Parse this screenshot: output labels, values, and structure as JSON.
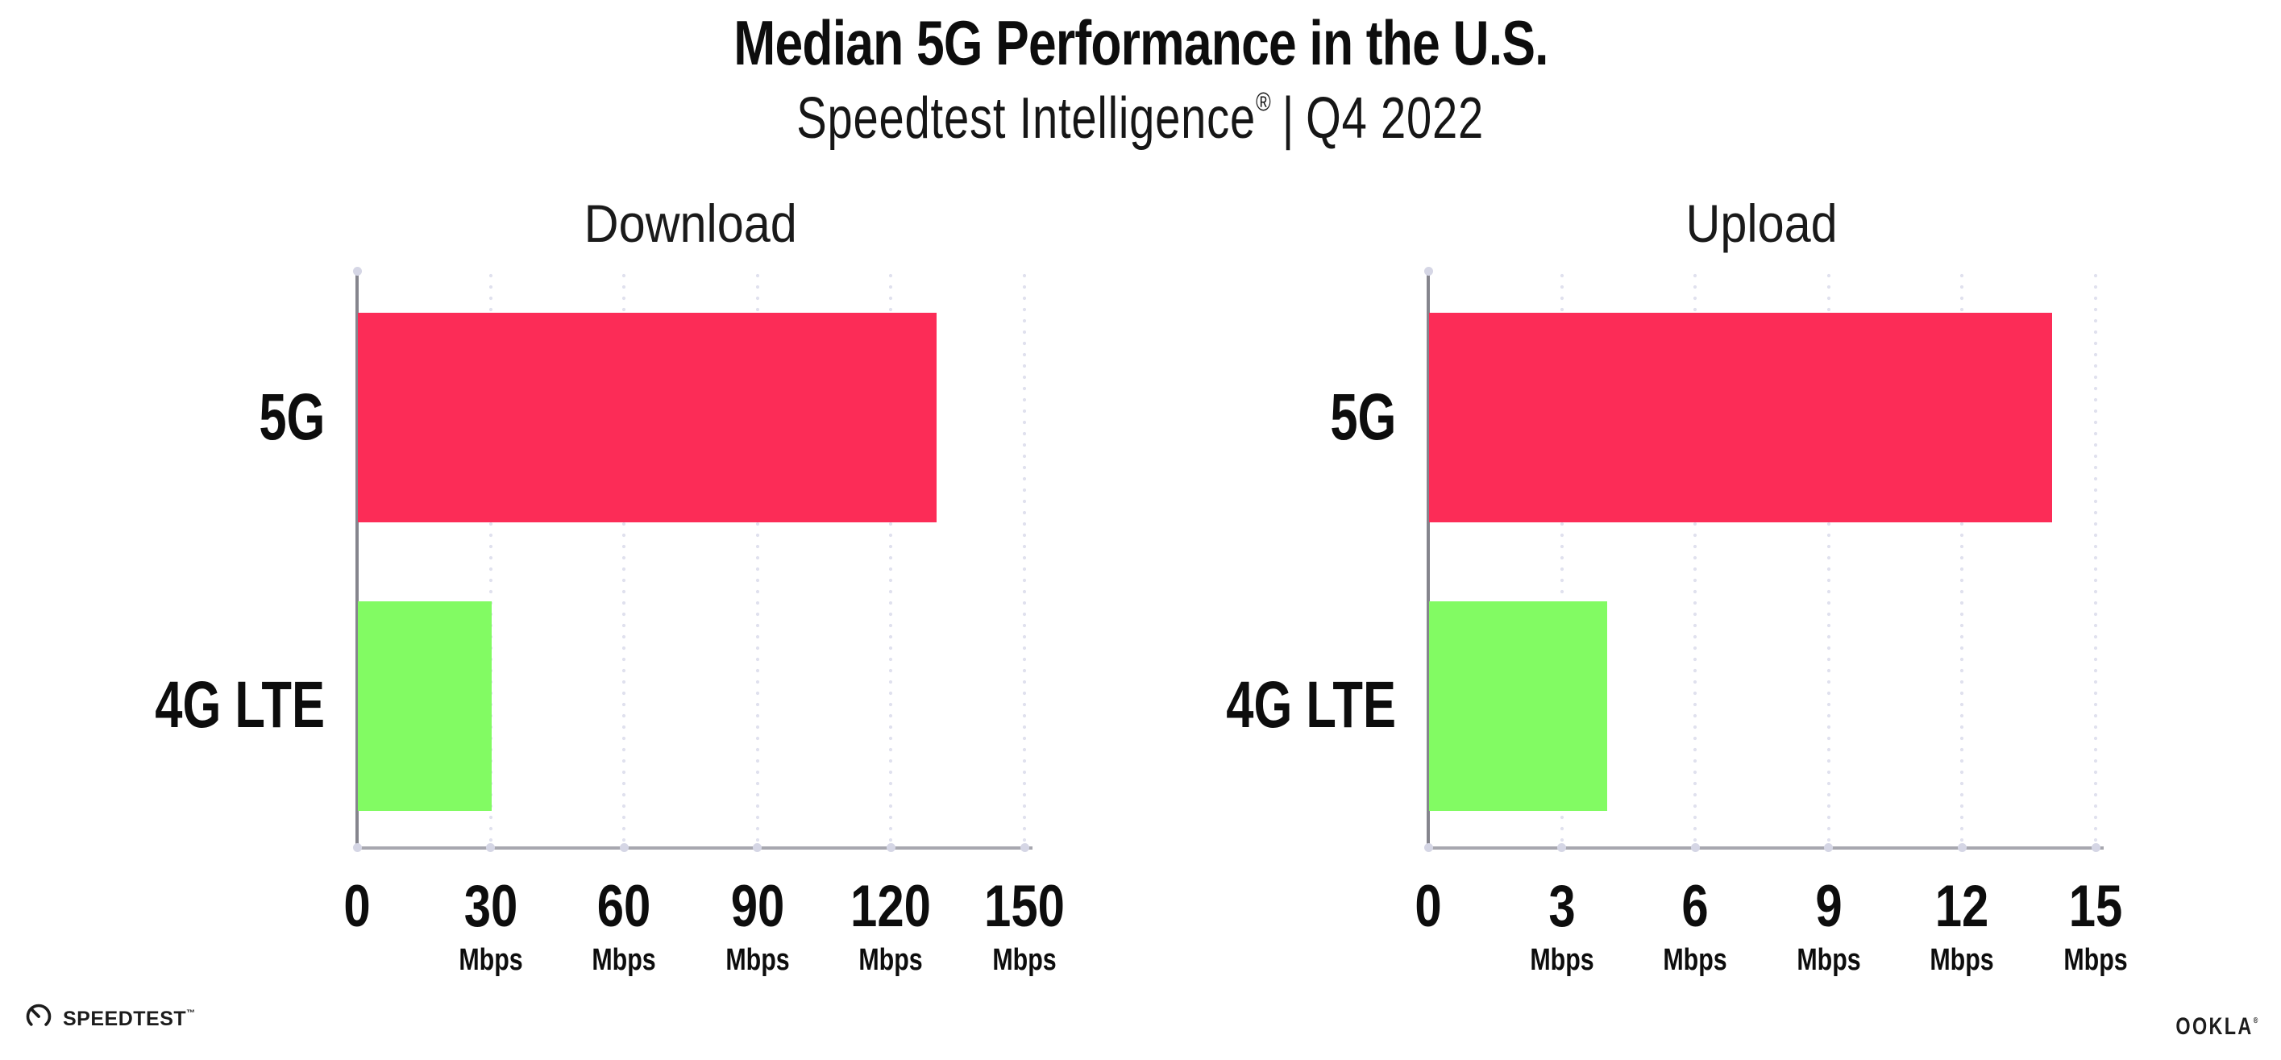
{
  "header": {
    "title": "Median 5G Performance in the U.S.",
    "subtitle_brand": "Speedtest Intelligence",
    "subtitle_reg": "®",
    "subtitle_sep": "|",
    "subtitle_period": "Q4 2022"
  },
  "chart_data": [
    {
      "type": "bar",
      "orientation": "horizontal",
      "title": "Download",
      "categories": [
        "5G",
        "4G LTE"
      ],
      "values": [
        130,
        30
      ],
      "unit": "Mbps",
      "xlim": [
        0,
        150
      ],
      "ticks": [
        0,
        30,
        60,
        90,
        120,
        150
      ],
      "tick_unit": "Mbps",
      "grid": "dotted-vertical",
      "bar_colors": [
        "#FC2C57",
        "#82FB63"
      ]
    },
    {
      "type": "bar",
      "orientation": "horizontal",
      "title": "Upload",
      "categories": [
        "5G",
        "4G LTE"
      ],
      "values": [
        14,
        4
      ],
      "unit": "Mbps",
      "xlim": [
        0,
        15
      ],
      "ticks": [
        0,
        3,
        6,
        9,
        12,
        15
      ],
      "tick_unit": "Mbps",
      "grid": "dotted-vertical",
      "bar_colors": [
        "#FC2C57",
        "#82FB63"
      ]
    }
  ],
  "colors": {
    "bar_5g": "#FC2C57",
    "bar_4g_lte": "#82FB63",
    "axis_line": "#85858D",
    "baseline": "#A7A7AF",
    "gridline_dots": "#E0E1EE",
    "tick_dots": "#D5D6E5",
    "text": "#111111",
    "background": "#FFFFFF"
  },
  "footer": {
    "speedtest_label": "SPEEDTEST",
    "speedtest_mark": "™",
    "ookla_label": "OOKLA",
    "ookla_mark": "®"
  }
}
